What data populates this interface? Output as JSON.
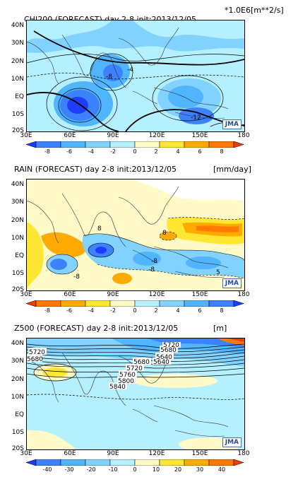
{
  "panels": [
    {
      "title": "CHI200 (FORECAST) day 2-8 init:2013/12/05",
      "unit": "*1.0E6[m**2/s]",
      "lat_labels": [
        "40N",
        "30N",
        "20N",
        "10N",
        "EQ",
        "10S",
        "20S"
      ],
      "lon_labels": [
        "30E",
        "60E",
        "90E",
        "120E",
        "150E",
        "180"
      ],
      "map_labels": [
        "-8",
        "-4",
        "-12"
      ],
      "logo": "JMA",
      "colorbar": {
        "ticks": [
          "-8",
          "-6",
          "-4",
          "-2",
          "0",
          "2",
          "4",
          "6",
          "8"
        ],
        "colors": [
          "#1e3cff",
          "#3c82ff",
          "#50b4ff",
          "#82d2ff",
          "#b4f0ff",
          "#fffac8",
          "#ffe632",
          "#ffaa00",
          "#ff7800",
          "#f03c00"
        ]
      }
    },
    {
      "title": "RAIN (FORECAST) day 2-8 init:2013/12/05",
      "unit": "[mm/day]",
      "lat_labels": [
        "40N",
        "30N",
        "20N",
        "10N",
        "EQ",
        "10S",
        "20S"
      ],
      "lon_labels": [
        "30E",
        "60E",
        "90E",
        "120E",
        "150E",
        "180"
      ],
      "map_labels": [
        "8",
        "8",
        "-8",
        "-8",
        "-8",
        "5"
      ],
      "logo": "JMA",
      "colorbar": {
        "ticks": [
          "-8",
          "-6",
          "-4",
          "-2",
          "0",
          "2",
          "4",
          "6",
          "8"
        ],
        "colors": [
          "#f03c00",
          "#ff7800",
          "#ffaa00",
          "#ffe632",
          "#fffac8",
          "#b4f0ff",
          "#82d2ff",
          "#50b4ff",
          "#3c82ff",
          "#1e3cff"
        ]
      }
    },
    {
      "title": "Z500 (FORECAST) day 2-8 init:2013/12/05",
      "unit": "[m]",
      "lat_labels": [
        "40N",
        "30N",
        "20N",
        "10N",
        "EQ",
        "10S",
        "20S"
      ],
      "lon_labels": [
        "30E",
        "60E",
        "90E",
        "120E",
        "150E",
        "180"
      ],
      "map_labels": [
        "5720",
        "5680",
        "5720",
        "5760",
        "5800",
        "5840",
        "5680",
        "5640",
        "5720",
        "5680",
        "5640"
      ],
      "logo": "JMA",
      "colorbar": {
        "ticks": [
          "-40",
          "-30",
          "-20",
          "-10",
          "0",
          "10",
          "20",
          "30",
          "40"
        ],
        "colors": [
          "#1e3cff",
          "#3c82ff",
          "#50b4ff",
          "#82d2ff",
          "#b4f0ff",
          "#fffac8",
          "#ffe632",
          "#ffaa00",
          "#ff7800",
          "#f03c00"
        ]
      }
    }
  ]
}
